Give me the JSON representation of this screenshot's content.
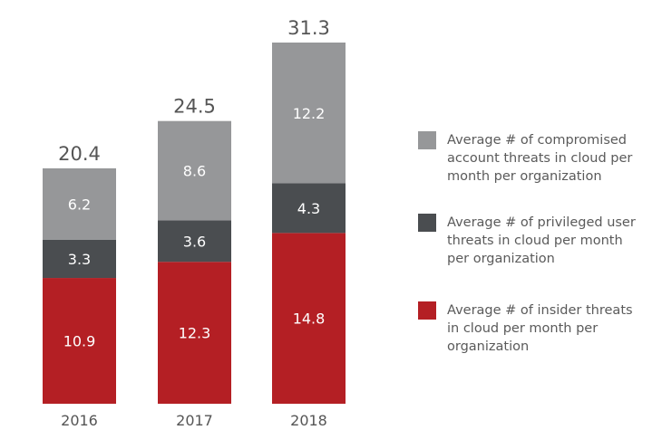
{
  "chart_data": {
    "type": "bar",
    "stacked": true,
    "categories": [
      "2016",
      "2017",
      "2018"
    ],
    "series": [
      {
        "name": "Average # of insider threats in cloud per month per organization",
        "legend_lines": [
          "Average # of insider threats",
          "in cloud per month per",
          "organization"
        ],
        "color": "#b41f24",
        "values": [
          10.9,
          12.3,
          14.8
        ]
      },
      {
        "name": "Average # of privileged user threats in cloud per month per organization",
        "legend_lines": [
          "Average # of privileged user",
          "threats in cloud per month",
          "per organization"
        ],
        "color": "#4a4d50",
        "values": [
          3.3,
          3.6,
          4.3
        ]
      },
      {
        "name": "Average # of compromised account threats in cloud per month per organization",
        "legend_lines": [
          "Average # of compromised",
          "account threats in cloud per",
          "month per organization"
        ],
        "color": "#969799",
        "values": [
          6.2,
          8.6,
          12.2
        ]
      }
    ],
    "totals": [
      "20.4",
      "24.5",
      "31.3"
    ],
    "ylim": [
      0,
      31.3
    ],
    "grid": false,
    "legend_position": "right"
  }
}
